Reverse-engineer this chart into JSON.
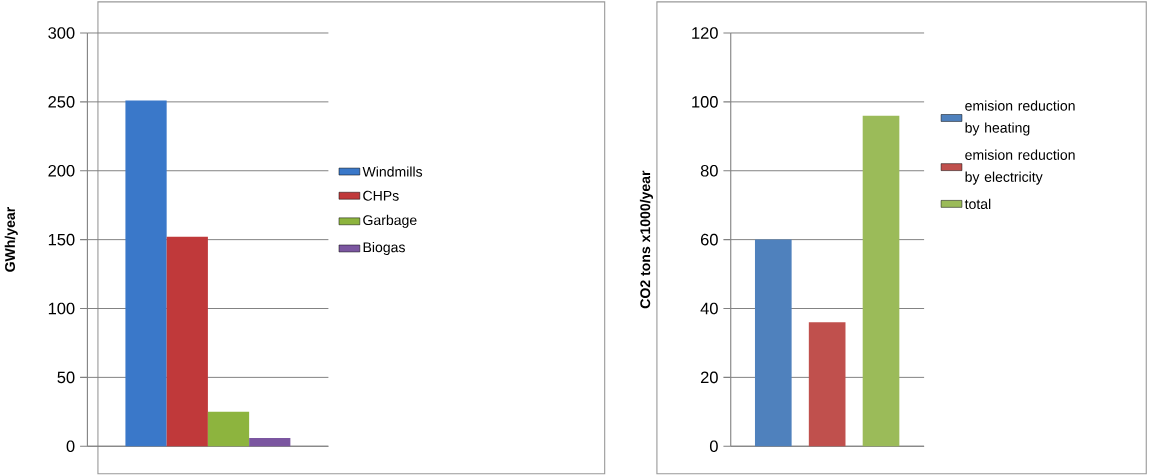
{
  "chart_data": [
    {
      "type": "bar",
      "ylabel": "GWh/year",
      "categories": [
        null
      ],
      "ylim": [
        0,
        300
      ],
      "yticks": [
        0,
        50,
        100,
        150,
        200,
        250,
        300
      ],
      "grid": "y",
      "legend": "right",
      "series": [
        {
          "name": "Windmills",
          "color": "#3a78c9",
          "values": [
            251
          ]
        },
        {
          "name": "CHPs",
          "color": "#c0393a",
          "values": [
            152
          ]
        },
        {
          "name": "Garbage",
          "color": "#8db43e",
          "values": [
            25
          ]
        },
        {
          "name": "Biogas",
          "color": "#7b56a0",
          "values": [
            6
          ]
        }
      ]
    },
    {
      "type": "bar",
      "ylabel": "CO2 tons x1000/year",
      "categories": [
        null,
        null,
        null
      ],
      "ylim": [
        0,
        120
      ],
      "yticks": [
        0,
        20,
        40,
        60,
        80,
        100,
        120
      ],
      "grid": "y",
      "legend": "right",
      "series": [
        {
          "name": "emision reduction by heating",
          "color": "#4f81bd",
          "values": [
            60,
            null,
            null
          ]
        },
        {
          "name": "emision reduction by electricity",
          "color": "#c0504d",
          "values": [
            null,
            36,
            null
          ]
        },
        {
          "name": "total",
          "color": "#9bbb59",
          "values": [
            null,
            null,
            96
          ]
        }
      ]
    }
  ]
}
